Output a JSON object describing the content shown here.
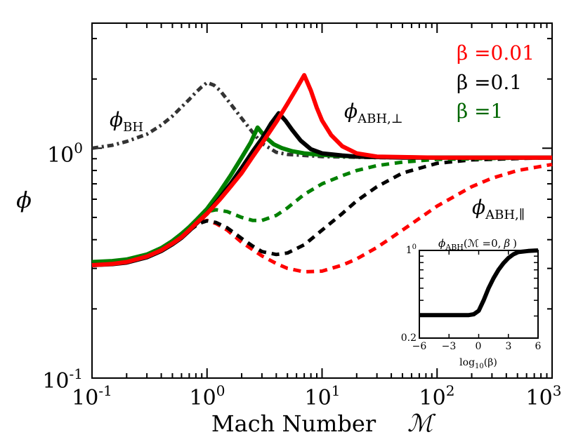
{
  "chart_data": {
    "type": "line",
    "xscale": "log",
    "yscale": "log",
    "xlim": [
      0.1,
      1000
    ],
    "ylim": [
      0.1,
      3.5
    ],
    "xlabel": "Mach Number",
    "xlabel_symbol": "ℳ",
    "ylabel": "ϕ",
    "x_ticks": [
      {
        "value": 0.1,
        "base": "10",
        "exp": "-1"
      },
      {
        "value": 1,
        "base": "10",
        "exp": "0"
      },
      {
        "value": 10,
        "base": "10",
        "exp": "1"
      },
      {
        "value": 100,
        "base": "10",
        "exp": "2"
      },
      {
        "value": 1000,
        "base": "10",
        "exp": "3"
      }
    ],
    "y_ticks": [
      {
        "value": 1,
        "base": "10",
        "exp": "0"
      },
      {
        "value": 0.1,
        "base": "10",
        "exp": "-1"
      }
    ],
    "legend": [
      {
        "label": "β =0.01",
        "color": "#ff0000"
      },
      {
        "label": "β =0.1",
        "color": "#000000"
      },
      {
        "label": "β =1",
        "color": "#006600"
      }
    ],
    "annotations": {
      "bh": {
        "main": "ϕ",
        "sub": "BH"
      },
      "perp": {
        "main": "ϕ",
        "sub": "ABH,⊥"
      },
      "par": {
        "main": "ϕ",
        "sub": "ABH,∥"
      }
    },
    "series": [
      {
        "name": "phi_BH",
        "style": "dashdot",
        "color": "#333333",
        "x": [
          0.1,
          0.15,
          0.2,
          0.3,
          0.4,
          0.5,
          0.6,
          0.7,
          0.8,
          0.9,
          1.0,
          1.15,
          1.3,
          1.6,
          2.0,
          2.5,
          3.0,
          4.0,
          5.0,
          7.0,
          10,
          30,
          100,
          1000
        ],
        "y": [
          1.0,
          1.03,
          1.07,
          1.15,
          1.26,
          1.38,
          1.51,
          1.63,
          1.75,
          1.85,
          1.93,
          1.88,
          1.78,
          1.56,
          1.35,
          1.17,
          1.05,
          0.96,
          0.94,
          0.93,
          0.92,
          0.91,
          0.91,
          0.91
        ]
      },
      {
        "name": "beta=0.01 perp",
        "style": "solid",
        "color": "#ff0000",
        "x": [
          0.1,
          0.15,
          0.2,
          0.3,
          0.4,
          0.5,
          0.6,
          0.7,
          0.8,
          1.0,
          1.3,
          1.6,
          2.0,
          2.5,
          3.0,
          4.0,
          5.0,
          6.0,
          7.0,
          8.0,
          9.0,
          10,
          12,
          15,
          20,
          30,
          50,
          100,
          1000
        ],
        "y": [
          0.31,
          0.314,
          0.32,
          0.338,
          0.36,
          0.385,
          0.41,
          0.44,
          0.47,
          0.52,
          0.6,
          0.68,
          0.78,
          0.92,
          1.05,
          1.3,
          1.56,
          1.82,
          2.08,
          1.78,
          1.5,
          1.32,
          1.14,
          1.02,
          0.95,
          0.92,
          0.915,
          0.91,
          0.91
        ]
      },
      {
        "name": "beta=0.1 perp",
        "style": "solid",
        "color": "#000000",
        "x": [
          0.1,
          0.15,
          0.2,
          0.3,
          0.4,
          0.5,
          0.6,
          0.7,
          0.8,
          1.0,
          1.3,
          1.6,
          2.0,
          2.5,
          3.0,
          3.6,
          4.2,
          4.8,
          5.5,
          6.5,
          8,
          10,
          15,
          20,
          30,
          50,
          100,
          1000
        ],
        "y": [
          0.31,
          0.313,
          0.318,
          0.335,
          0.357,
          0.382,
          0.407,
          0.437,
          0.468,
          0.52,
          0.61,
          0.7,
          0.82,
          0.97,
          1.1,
          1.28,
          1.42,
          1.32,
          1.2,
          1.08,
          0.99,
          0.95,
          0.93,
          0.92,
          0.915,
          0.91,
          0.91,
          0.91
        ]
      },
      {
        "name": "beta=1 perp",
        "style": "solid",
        "color": "#008000",
        "x": [
          0.1,
          0.15,
          0.2,
          0.3,
          0.4,
          0.5,
          0.6,
          0.7,
          0.8,
          1.0,
          1.3,
          1.6,
          2.0,
          2.4,
          2.75,
          3.2,
          3.8,
          4.5,
          5.5,
          7,
          10,
          20,
          30,
          100,
          1000
        ],
        "y": [
          0.32,
          0.323,
          0.328,
          0.345,
          0.368,
          0.395,
          0.424,
          0.454,
          0.485,
          0.545,
          0.65,
          0.76,
          0.91,
          1.06,
          1.23,
          1.12,
          1.04,
          1.0,
          0.97,
          0.95,
          0.935,
          0.92,
          0.915,
          0.91,
          0.91
        ]
      },
      {
        "name": "beta=0.01 par",
        "style": "dashed",
        "color": "#ff0000",
        "x": [
          0.1,
          0.15,
          0.2,
          0.3,
          0.4,
          0.5,
          0.6,
          0.7,
          0.8,
          0.9,
          1.0,
          1.2,
          1.5,
          2.0,
          3.0,
          4.0,
          5.0,
          7.0,
          10,
          15,
          20,
          30,
          50,
          100,
          200,
          300,
          500,
          1000
        ],
        "y": [
          0.31,
          0.314,
          0.32,
          0.338,
          0.36,
          0.385,
          0.41,
          0.44,
          0.465,
          0.48,
          0.485,
          0.47,
          0.44,
          0.39,
          0.34,
          0.315,
          0.3,
          0.29,
          0.292,
          0.31,
          0.33,
          0.37,
          0.44,
          0.56,
          0.68,
          0.74,
          0.8,
          0.85
        ]
      },
      {
        "name": "beta=0.1 par",
        "style": "dashed",
        "color": "#000000",
        "x": [
          0.1,
          0.15,
          0.2,
          0.3,
          0.4,
          0.5,
          0.6,
          0.7,
          0.8,
          0.9,
          1.0,
          1.2,
          1.5,
          2.0,
          2.5,
          3.0,
          4.0,
          5.0,
          7.0,
          10,
          15,
          20,
          30,
          50,
          100,
          200,
          1000
        ],
        "y": [
          0.31,
          0.313,
          0.318,
          0.335,
          0.357,
          0.382,
          0.407,
          0.437,
          0.46,
          0.475,
          0.483,
          0.475,
          0.45,
          0.405,
          0.375,
          0.355,
          0.345,
          0.35,
          0.38,
          0.44,
          0.52,
          0.59,
          0.68,
          0.78,
          0.86,
          0.89,
          0.91
        ]
      },
      {
        "name": "beta=1 par",
        "style": "dashed",
        "color": "#008000",
        "x": [
          0.1,
          0.15,
          0.2,
          0.3,
          0.4,
          0.5,
          0.6,
          0.7,
          0.8,
          0.9,
          1.0,
          1.2,
          1.5,
          2.0,
          2.5,
          3.0,
          4.0,
          5.0,
          7.0,
          10,
          15,
          20,
          30,
          50,
          100,
          1000
        ],
        "y": [
          0.32,
          0.323,
          0.328,
          0.345,
          0.368,
          0.395,
          0.424,
          0.454,
          0.485,
          0.51,
          0.53,
          0.54,
          0.53,
          0.5,
          0.485,
          0.485,
          0.51,
          0.55,
          0.63,
          0.7,
          0.76,
          0.8,
          0.84,
          0.87,
          0.895,
          0.91
        ]
      }
    ],
    "inset": {
      "type": "line",
      "title_main": "ϕ",
      "title_sub": "ABH",
      "title_args_a": "(ℳ =0,",
      "title_beta": "β",
      "title_args_b": ")",
      "xlabel": "log",
      "xlabel_sub": "10",
      "xlabel_arg": "(β)",
      "xlim": [
        -6,
        6
      ],
      "ylim": [
        0.2,
        1.0
      ],
      "x_ticks": [
        "−6",
        "−3",
        "0",
        "3",
        "6"
      ],
      "x_tick_values": [
        -6,
        -3,
        0,
        3,
        6
      ],
      "y_ticks": [
        {
          "label": "1",
          "exp": "0",
          "value": 1.0
        },
        {
          "label": "0.2",
          "exp": "",
          "value": 0.2
        }
      ],
      "x": [
        -6,
        -5,
        -4,
        -3,
        -2,
        -1,
        -0.5,
        0,
        0.5,
        1,
        1.5,
        2,
        2.5,
        3,
        3.5,
        4,
        5,
        6
      ],
      "y": [
        0.305,
        0.305,
        0.305,
        0.305,
        0.305,
        0.305,
        0.31,
        0.33,
        0.4,
        0.5,
        0.6,
        0.7,
        0.79,
        0.87,
        0.93,
        0.97,
        0.99,
        1.0
      ]
    }
  }
}
